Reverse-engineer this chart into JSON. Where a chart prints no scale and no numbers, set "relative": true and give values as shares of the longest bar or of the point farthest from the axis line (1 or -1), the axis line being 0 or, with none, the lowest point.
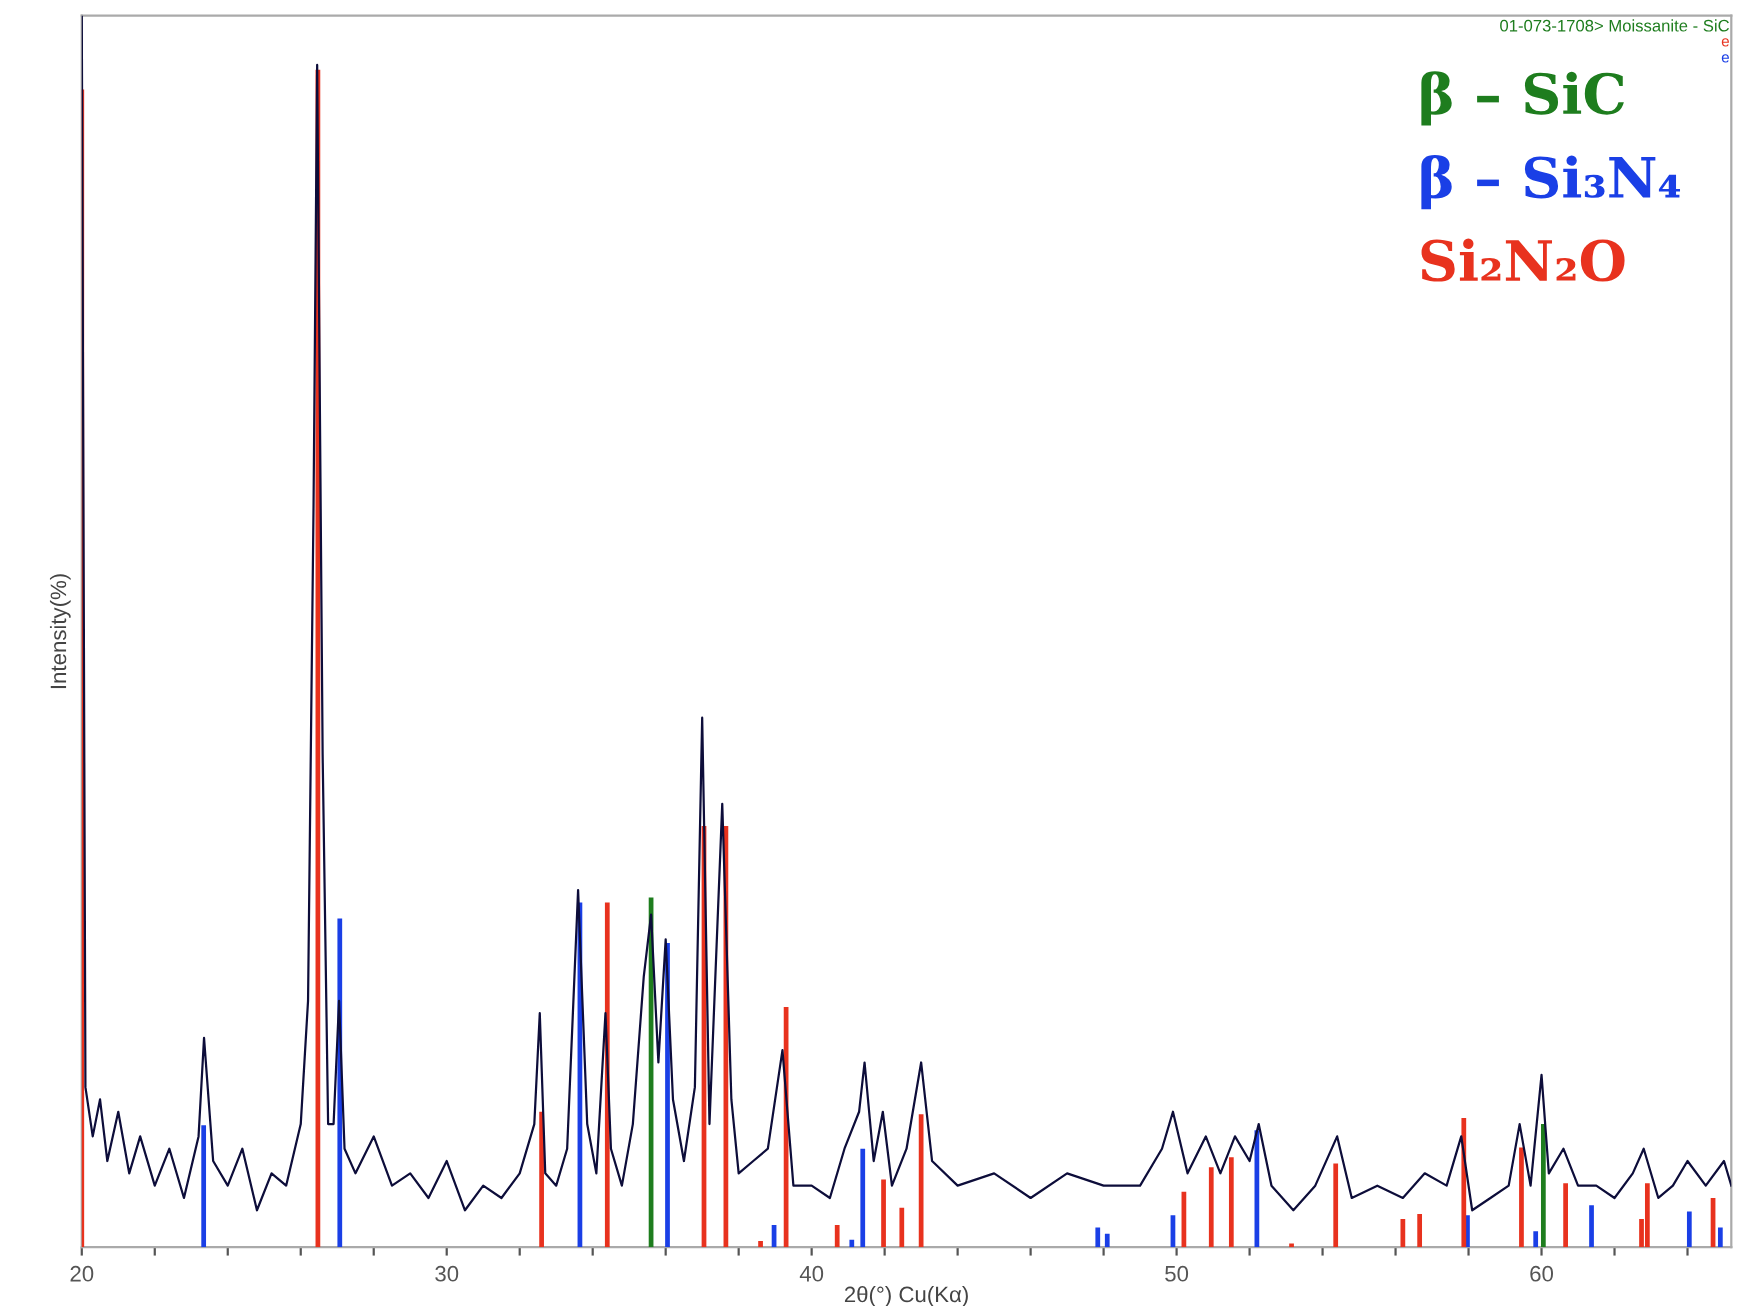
{
  "chart_data": {
    "type": "line",
    "relative": true,
    "xlabel": "2θ(°) Cu(Kα)",
    "ylabel": "Intensity(%)",
    "xlim": [
      20,
      65.2
    ],
    "xticks": [
      20,
      {
        "value": 22,
        "label": null
      },
      {
        "value": 24,
        "label": null
      },
      {
        "value": 26,
        "label": null
      },
      {
        "value": 28,
        "label": null
      },
      30,
      {
        "value": 32,
        "label": null
      },
      {
        "value": 34,
        "label": null
      },
      {
        "value": 36,
        "label": null
      },
      {
        "value": 38,
        "label": null
      },
      40,
      {
        "value": 42,
        "label": null
      },
      {
        "value": 44,
        "label": null
      },
      {
        "value": 46,
        "label": null
      },
      {
        "value": 48,
        "label": null
      },
      50,
      {
        "value": 52,
        "label": null
      },
      {
        "value": 54,
        "label": null
      },
      {
        "value": 56,
        "label": null
      },
      {
        "value": 58,
        "label": null
      },
      60,
      {
        "value": 62,
        "label": null
      },
      {
        "value": 64,
        "label": null
      }
    ],
    "tick_labels": "x",
    "grid": false,
    "legend": "top right",
    "marker": "none",
    "line_style": "solid",
    "annotations": [
      "01-073-1708> Moissanite - SiC",
      "e",
      "e"
    ],
    "series": [
      {
        "color": "#0d0d3a",
        "x": [
          20.0,
          20.1,
          20.3,
          20.5,
          20.7,
          21.0,
          21.3,
          21.6,
          22.0,
          22.4,
          22.8,
          23.2,
          23.35,
          23.6,
          24.0,
          24.4,
          24.8,
          25.2,
          25.6,
          26.0,
          26.2,
          26.35,
          26.45,
          26.6,
          26.75,
          26.9,
          27.05,
          27.2,
          27.5,
          28.0,
          28.5,
          29.0,
          29.5,
          30.0,
          30.5,
          31.0,
          31.5,
          32.0,
          32.4,
          32.55,
          32.7,
          33.0,
          33.3,
          33.6,
          33.85,
          34.1,
          34.35,
          34.5,
          34.8,
          35.1,
          35.4,
          35.6,
          35.8,
          36.0,
          36.2,
          36.5,
          36.8,
          37.0,
          37.2,
          37.55,
          37.8,
          38.0,
          38.4,
          38.8,
          39.2,
          39.5,
          40.0,
          40.5,
          40.9,
          41.3,
          41.45,
          41.7,
          41.95,
          42.2,
          42.6,
          43.0,
          43.3,
          44.0,
          45.0,
          46.0,
          47.0,
          48.0,
          49.0,
          49.6,
          49.9,
          50.3,
          50.8,
          51.2,
          51.6,
          52.0,
          52.25,
          52.6,
          53.2,
          53.8,
          54.4,
          54.8,
          55.5,
          56.2,
          56.8,
          57.4,
          57.8,
          58.1,
          58.6,
          59.1,
          59.4,
          59.7,
          60.0,
          60.2,
          60.6,
          61.0,
          61.5,
          62.0,
          62.5,
          62.8,
          63.2,
          63.6,
          64.0,
          64.5,
          65.0,
          65.2
        ],
        "values": [
          1.0,
          0.13,
          0.09,
          0.12,
          0.07,
          0.11,
          0.06,
          0.09,
          0.05,
          0.08,
          0.04,
          0.09,
          0.17,
          0.07,
          0.05,
          0.08,
          0.03,
          0.06,
          0.05,
          0.1,
          0.2,
          0.6,
          0.96,
          0.4,
          0.1,
          0.1,
          0.2,
          0.08,
          0.06,
          0.09,
          0.05,
          0.06,
          0.04,
          0.07,
          0.03,
          0.05,
          0.04,
          0.06,
          0.1,
          0.19,
          0.06,
          0.05,
          0.08,
          0.29,
          0.1,
          0.06,
          0.19,
          0.08,
          0.05,
          0.1,
          0.22,
          0.27,
          0.15,
          0.25,
          0.12,
          0.07,
          0.13,
          0.43,
          0.1,
          0.36,
          0.12,
          0.06,
          0.07,
          0.08,
          0.16,
          0.05,
          0.05,
          0.04,
          0.08,
          0.11,
          0.15,
          0.07,
          0.11,
          0.05,
          0.08,
          0.15,
          0.07,
          0.05,
          0.06,
          0.04,
          0.06,
          0.05,
          0.05,
          0.08,
          0.11,
          0.06,
          0.09,
          0.06,
          0.09,
          0.07,
          0.1,
          0.05,
          0.03,
          0.05,
          0.09,
          0.04,
          0.05,
          0.04,
          0.06,
          0.05,
          0.09,
          0.03,
          0.04,
          0.05,
          0.1,
          0.05,
          0.14,
          0.06,
          0.08,
          0.05,
          0.05,
          0.04,
          0.06,
          0.08,
          0.04,
          0.05,
          0.07,
          0.05,
          0.07,
          0.05
        ]
      },
      {
        "type": "bar",
        "name": "β – SiC",
        "color": "#1e7d1e",
        "x": [
          35.6,
          60.05
        ],
        "values": [
          0.284,
          0.1
        ]
      },
      {
        "type": "bar",
        "name": "β – Si₃N₄",
        "color": "#1a3fe6",
        "x": [
          23.34,
          27.07,
          33.65,
          36.05,
          38.97,
          41.1,
          41.4,
          47.84,
          48.1,
          49.9,
          52.2,
          57.97,
          59.84,
          61.37,
          64.05,
          64.9
        ],
        "values": [
          0.099,
          0.267,
          0.28,
          0.247,
          0.018,
          0.006,
          0.08,
          0.016,
          0.011,
          0.026,
          0.095,
          0.026,
          0.013,
          0.034,
          0.029,
          0.016
        ]
      },
      {
        "type": "bar",
        "name": "Si₂N₂O",
        "color": "#e8321e",
        "x": [
          20.0,
          26.47,
          32.6,
          34.4,
          37.05,
          37.65,
          38.6,
          39.3,
          40.7,
          41.97,
          42.47,
          43.0,
          50.2,
          50.95,
          51.5,
          53.15,
          54.36,
          56.2,
          56.66,
          57.87,
          59.45,
          60.66,
          62.74,
          62.9,
          64.7
        ],
        "values": [
          0.94,
          0.956,
          0.11,
          0.28,
          0.342,
          0.342,
          0.005,
          0.195,
          0.018,
          0.055,
          0.032,
          0.108,
          0.045,
          0.065,
          0.073,
          0.003,
          0.068,
          0.023,
          0.027,
          0.105,
          0.081,
          0.052,
          0.023,
          0.052,
          0.04
        ]
      }
    ]
  }
}
